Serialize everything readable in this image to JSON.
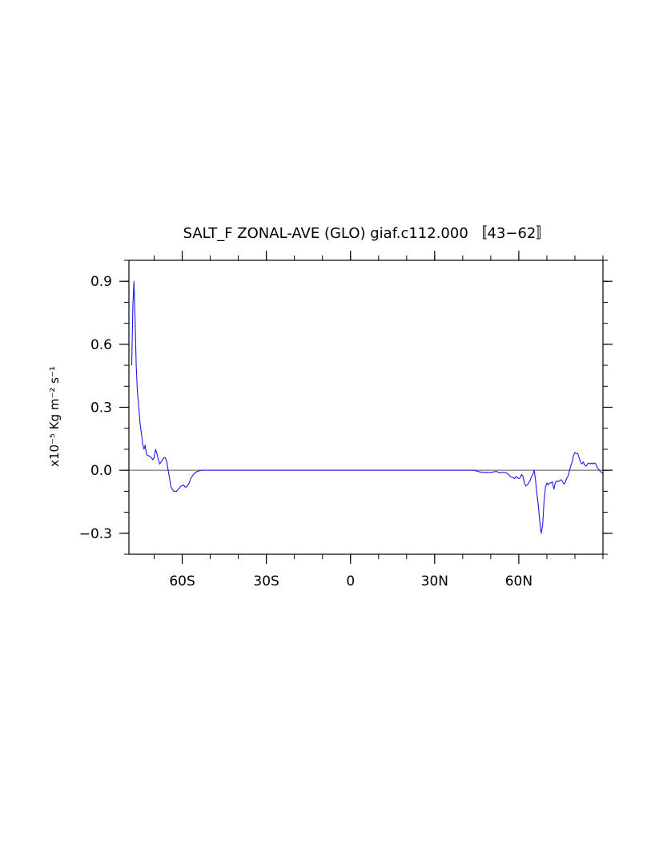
{
  "chart_data": {
    "type": "line",
    "title": "SALT_F ZONAL-AVE (GLO) giaf.c112.000 〚43−62〛",
    "ylabel": "x10⁻⁵ Kg m⁻² s⁻¹",
    "xlabel": "",
    "xlim": [
      -79,
      90
    ],
    "ylim": [
      -0.4,
      1.0
    ],
    "x_tick_values": [
      -60,
      -30,
      0,
      30,
      60
    ],
    "x_tick_labels": [
      "60S",
      "30S",
      "0",
      "30N",
      "60N"
    ],
    "x_minor_step": 10,
    "y_tick_values": [
      -0.3,
      0.0,
      0.3,
      0.6,
      0.9
    ],
    "y_tick_labels": [
      "−0.3",
      "0.0",
      "0.3",
      "0.6",
      "0.9"
    ],
    "y_minor_step": 0.1,
    "zero_line": true,
    "grid": false,
    "colors": {
      "line": "#1a1aee",
      "zero_line": "#555555",
      "axes": "#000000"
    },
    "series": [
      {
        "x": [
          -78,
          -77.6,
          -77.2,
          -76.8,
          -76.4,
          -76,
          -75.5,
          -75,
          -74.5,
          -74,
          -73.6,
          -73.2,
          -72.8,
          -72.4,
          -72,
          -71.5,
          -71,
          -70.5,
          -70,
          -69.5,
          -69,
          -68.5,
          -68,
          -67.5,
          -67,
          -66.5,
          -66,
          -65.5,
          -65,
          -64.5,
          -64,
          -63,
          -62,
          -61.5,
          -61,
          -60.5,
          -60,
          -59.5,
          -59,
          -58.5,
          -58,
          -57.5,
          -57,
          -56.5,
          -56,
          -55,
          -54,
          -53,
          -52,
          -50,
          -45,
          -40,
          -30,
          -20,
          -10,
          0,
          10,
          20,
          30,
          40,
          44,
          46,
          48,
          50,
          52,
          53,
          54,
          55,
          56,
          57,
          58,
          58.5,
          59,
          59.5,
          60,
          60.5,
          61,
          61.5,
          62,
          62.5,
          63,
          63.5,
          64,
          64.5,
          65,
          65.5,
          66,
          66.5,
          67,
          67.5,
          68,
          68.5,
          69,
          69.5,
          70,
          70.5,
          71,
          71.5,
          72,
          72.5,
          73,
          73.5,
          74,
          74.5,
          75,
          75.5,
          76,
          76.5,
          77,
          77.5,
          78,
          78.5,
          79,
          79.5,
          80,
          80.5,
          81,
          81.5,
          82,
          82.5,
          83,
          83.5,
          84,
          84.5,
          85,
          85.5,
          86,
          86.5,
          87,
          87.5,
          88,
          88.5,
          89,
          89.5,
          90
        ],
        "y": [
          0.5,
          0.78,
          0.9,
          0.72,
          0.5,
          0.38,
          0.3,
          0.22,
          0.17,
          0.12,
          0.1,
          0.12,
          0.08,
          0.07,
          0.07,
          0.065,
          0.06,
          0.05,
          0.06,
          0.1,
          0.08,
          0.05,
          0.03,
          0.04,
          0.05,
          0.06,
          0.06,
          0.04,
          0.0,
          -0.04,
          -0.08,
          -0.1,
          -0.1,
          -0.09,
          -0.085,
          -0.075,
          -0.075,
          -0.07,
          -0.08,
          -0.08,
          -0.07,
          -0.06,
          -0.04,
          -0.03,
          -0.02,
          -0.008,
          -0.003,
          0.0,
          0.0,
          0.0,
          0.0,
          0.0,
          0.0,
          0.0,
          0.0,
          0.0,
          0.0,
          0.0,
          0.0,
          0.0,
          0.0,
          -0.008,
          -0.01,
          -0.01,
          -0.005,
          -0.012,
          -0.01,
          -0.01,
          -0.015,
          -0.03,
          -0.035,
          -0.04,
          -0.03,
          -0.035,
          -0.04,
          -0.035,
          -0.02,
          -0.03,
          -0.06,
          -0.075,
          -0.07,
          -0.06,
          -0.05,
          -0.03,
          -0.02,
          0.0,
          -0.05,
          -0.12,
          -0.17,
          -0.25,
          -0.3,
          -0.26,
          -0.15,
          -0.08,
          -0.06,
          -0.07,
          -0.06,
          -0.06,
          -0.055,
          -0.09,
          -0.06,
          -0.05,
          -0.055,
          -0.05,
          -0.045,
          -0.05,
          -0.065,
          -0.06,
          -0.04,
          -0.03,
          -0.005,
          0.02,
          0.04,
          0.07,
          0.085,
          0.08,
          0.08,
          0.06,
          0.04,
          0.03,
          0.04,
          0.025,
          0.02,
          0.03,
          0.035,
          0.03,
          0.035,
          0.03,
          0.035,
          0.03,
          0.01,
          0.005,
          -0.005,
          -0.01,
          -0.015
        ]
      }
    ]
  }
}
